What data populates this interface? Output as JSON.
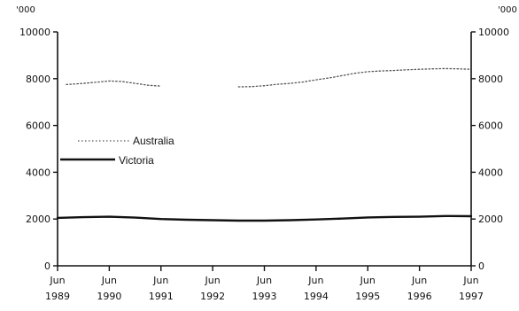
{
  "chart_data": {
    "type": "line",
    "y_unit_label_left": "'000",
    "y_unit_label_right": "'000",
    "ylim": [
      0,
      10000
    ],
    "y_ticks": [
      0,
      2000,
      4000,
      6000,
      8000,
      10000
    ],
    "y_tick_labels": [
      "0",
      "2000",
      "4000",
      "6000",
      "8000",
      "10000"
    ],
    "x_range": [
      1989.5,
      1997.5
    ],
    "x_ticks": [
      1989.5,
      1990.5,
      1991.5,
      1992.5,
      1993.5,
      1994.5,
      1995.5,
      1996.5,
      1997.5
    ],
    "x_tick_labels_month": [
      "Jun",
      "Jun",
      "Jun",
      "Jun",
      "Jun",
      "Jun",
      "Jun",
      "Jun",
      "Jun"
    ],
    "x_tick_labels_year": [
      "1989",
      "1990",
      "1991",
      "1992",
      "1993",
      "1994",
      "1995",
      "1996",
      "1997"
    ],
    "legend_position": "left-middle",
    "series": [
      {
        "name": "Australia",
        "style": "dotted",
        "color": "#555555",
        "segments": [
          {
            "x": [
              1989.67,
              1990.0,
              1990.25,
              1990.5,
              1990.75,
              1991.0,
              1991.25,
              1991.5
            ],
            "y": [
              7750,
              7800,
              7850,
              7900,
              7880,
              7800,
              7720,
              7680
            ]
          },
          {
            "x": [
              1993.0,
              1993.25,
              1993.5,
              1993.75,
              1994.0,
              1994.25,
              1994.5,
              1994.75,
              1995.0,
              1995.25,
              1995.5,
              1995.75,
              1996.0,
              1996.25,
              1996.5,
              1996.75,
              1997.0,
              1997.25,
              1997.5
            ],
            "y": [
              7650,
              7660,
              7700,
              7760,
              7800,
              7860,
              7950,
              8030,
              8130,
              8230,
              8300,
              8330,
              8350,
              8380,
              8400,
              8420,
              8430,
              8420,
              8400
            ]
          }
        ]
      },
      {
        "name": "Victoria",
        "style": "solid",
        "color": "#111111",
        "segments": [
          {
            "x": [
              1989.5,
              1990.0,
              1990.5,
              1991.0,
              1991.5,
              1992.0,
              1992.5,
              1993.0,
              1993.5,
              1994.0,
              1994.5,
              1995.0,
              1995.5,
              1996.0,
              1996.5,
              1997.0,
              1997.5
            ],
            "y": [
              2050,
              2080,
              2100,
              2060,
              2000,
              1970,
              1950,
              1930,
              1930,
              1950,
              1980,
              2020,
              2070,
              2090,
              2100,
              2130,
              2120
            ]
          }
        ]
      }
    ]
  }
}
